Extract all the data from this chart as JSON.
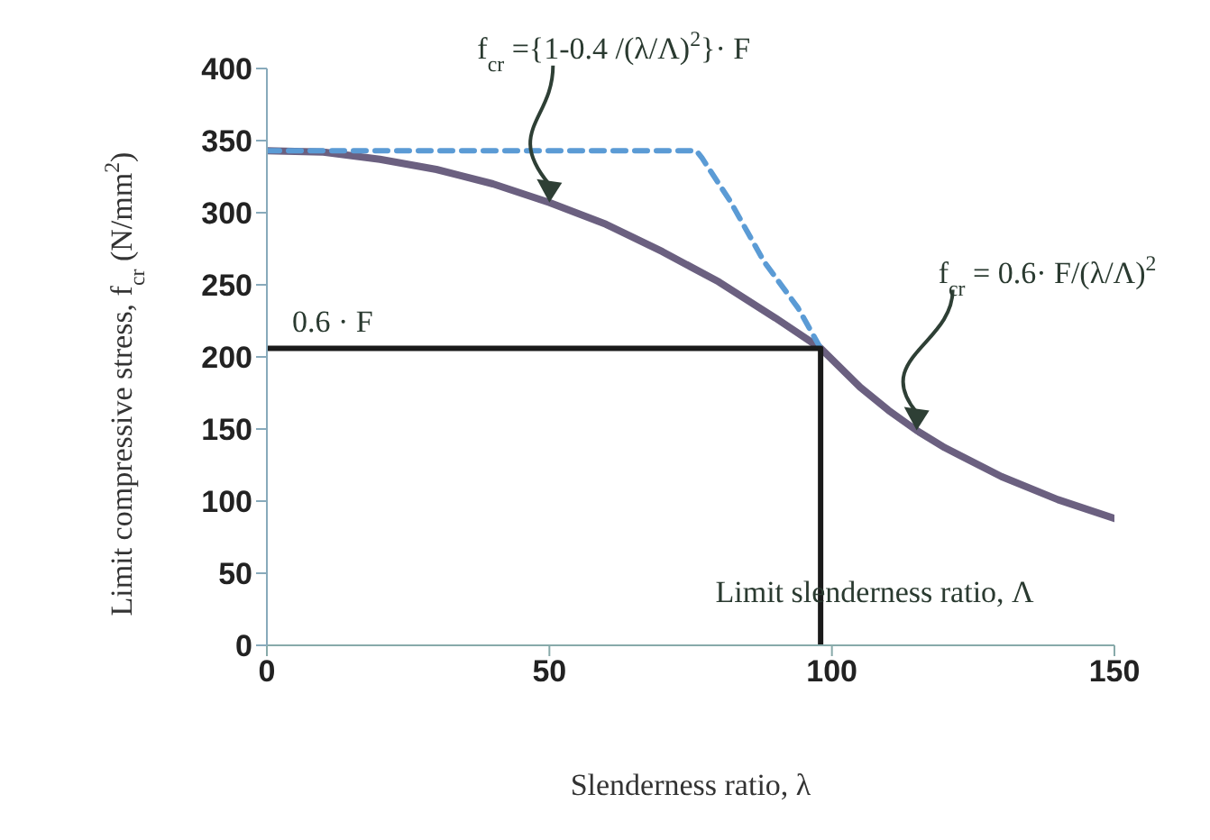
{
  "chart_data": {
    "type": "line",
    "xlabel": "Slenderness ratio, λ",
    "ylabel": "Limit compressive stress,   f$_{cr}$ (N/mm$^{2}$)",
    "xlim": [
      0,
      150
    ],
    "xticks": [
      0,
      50,
      100,
      150
    ],
    "ylim": [
      0,
      400
    ],
    "yticks": [
      0,
      50,
      100,
      150,
      200,
      250,
      300,
      350,
      400
    ],
    "marker": "none",
    "series": [
      {
        "color": "#6b6080",
        "line_style": "solid",
        "x": [
          0,
          10,
          20,
          30,
          40,
          50,
          60,
          70,
          80,
          90,
          98,
          105,
          110,
          115,
          120,
          130,
          140,
          150
        ],
        "values": [
          343,
          342,
          337,
          330,
          320,
          307,
          292,
          273,
          252,
          227,
          206,
          179,
          163,
          149,
          137,
          117,
          101,
          88
        ]
      },
      {
        "color": "#5b9bd5",
        "line_style": "dashed",
        "x": [
          0,
          76,
          77,
          82,
          88,
          94,
          98
        ],
        "values": [
          343,
          343,
          338,
          308,
          266,
          234,
          206
        ]
      },
      {
        "color": "#1a1a1a",
        "line_style": "solid",
        "x": [
          0,
          98,
          98
        ],
        "values": [
          206,
          206,
          0
        ]
      }
    ],
    "annotations": [
      "f$_{cr}$ ={1-0.4 /(λ/Λ)$^{2}$}· F",
      "f$_{cr}$ = 0.6· F/(λ/Λ)$^{2}$",
      {
        "text": "0.6 · F",
        "x": 0,
        "y": 206
      },
      {
        "text": "Limit slenderness ratio, Λ",
        "x": 98,
        "y": 40
      }
    ]
  }
}
